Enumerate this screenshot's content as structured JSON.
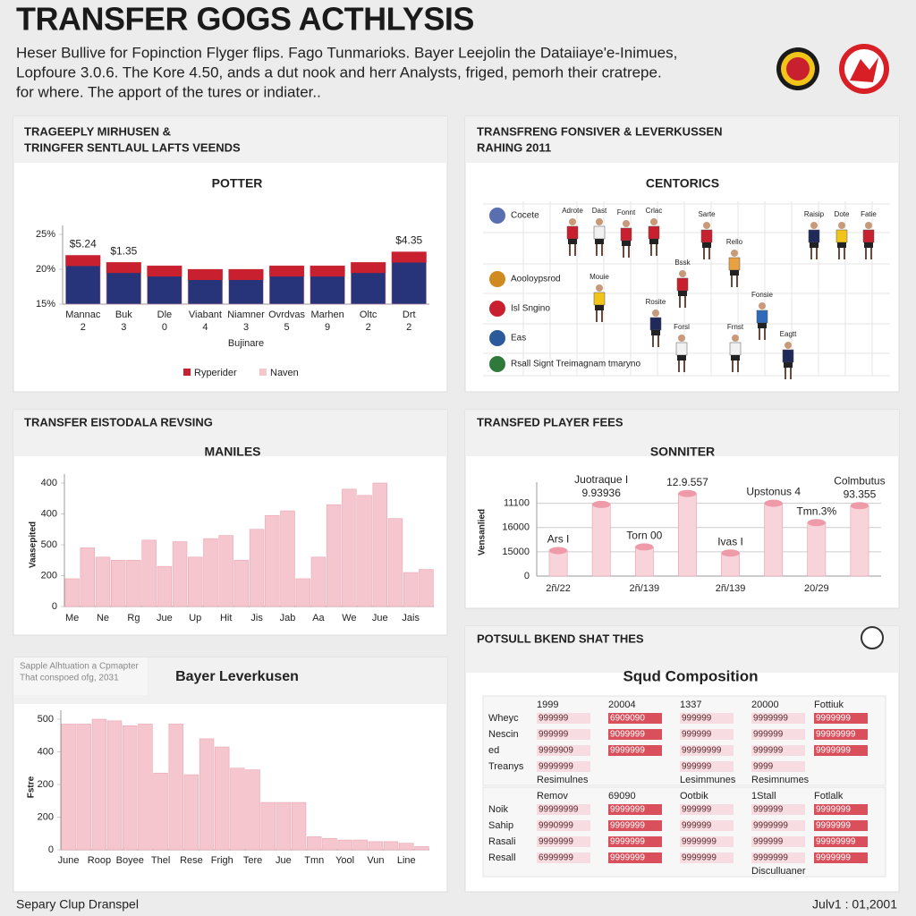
{
  "header": {
    "title": "TRANSFER GOGS ACTHLYSIS",
    "subtitle": [
      "Heser Bullive for Fopinction Flyger flips. Fago Tunmarioks. Bayer Leejolin the Dataiiaye'e-Inimues,",
      "Lopfoure 3.0.6. The Kore 4.50, ands a dut nook and herr Analysts, friged, pemorh their cratrepe.",
      "for where. The apport of the tures or indiater.."
    ]
  },
  "chart_data": [
    {
      "type": "bar",
      "heading": [
        "TRAGEEPLY MIRHUSEN &",
        "TRINGFER SENTLAUL LAFTS VEENDS"
      ],
      "title": "POTTER",
      "categories": [
        "Mannac",
        "Buk",
        "Dle",
        "Viabant",
        "Niamner",
        "Ovrdvas",
        "Marhen",
        "Oltc",
        "Drt"
      ],
      "category_counts": [
        2,
        3,
        0,
        4,
        3,
        5,
        9,
        2,
        2
      ],
      "values": [
        22,
        21,
        20.5,
        20,
        20,
        20.5,
        20.5,
        21,
        22.5
      ],
      "annotations": [
        [
          "$5.24"
        ],
        [
          "$1.35"
        ],
        null,
        null,
        null,
        null,
        null,
        null,
        [
          "$4.35"
        ]
      ],
      "color": "#27347a",
      "cap_color": "#c8202e",
      "xlabel": "Bujinare",
      "ylim": [
        15,
        25
      ],
      "yticks": [
        {
          "value": 15,
          "label": "15%"
        },
        {
          "value": 20,
          "label": "20%"
        },
        {
          "value": 25,
          "label": "25%"
        }
      ],
      "grid": false,
      "legend": [
        {
          "name": "Ryperider",
          "color": "#c8202e"
        },
        {
          "name": "Naven",
          "color": "#f6c6cf"
        }
      ],
      "legend_position": "bottom"
    },
    {
      "type": "bar",
      "heading": [
        "TRANSFER EISTODALA REVSING"
      ],
      "title": "MANILES",
      "ylabel": "Vaasepited",
      "categories": [
        "Me",
        null,
        "Ne",
        null,
        "Rg",
        null,
        "Jue",
        null,
        "Up",
        null,
        "Hit",
        null,
        "Jis",
        null,
        "Jab",
        null,
        "Aa",
        null,
        "We",
        null,
        "Jue",
        null,
        "Jais",
        null
      ],
      "values": [
        90,
        190,
        160,
        150,
        150,
        215,
        130,
        210,
        160,
        220,
        230,
        150,
        250,
        295,
        310,
        90,
        160,
        330,
        380,
        360,
        400,
        285,
        110,
        120
      ],
      "color": "#f6c6cf",
      "ylim": [
        0,
        400
      ],
      "yticks": [
        0,
        {
          "value": 100,
          "label": "200"
        },
        {
          "value": 200,
          "label": "500"
        },
        {
          "value": 300,
          "label": "400"
        },
        400
      ],
      "grid": false
    },
    {
      "type": "bar",
      "heading": [
        "TRANSFED PLAYER FEES"
      ],
      "title": "SONNITER",
      "ylabel": "Vensanlied",
      "categories": [
        "2ñ/22",
        null,
        "2ñ/139",
        null,
        "2ñ/139",
        null,
        "20/29",
        null
      ],
      "values": [
        1.05,
        2.95,
        1.2,
        3.4,
        0.95,
        3.0,
        2.2,
        2.9
      ],
      "annotations": [
        [
          "Ars I"
        ],
        [
          "Juotraque I",
          "9.93936"
        ],
        [
          "Torn 00"
        ],
        [
          "12.9.557"
        ],
        [
          "Ivas I"
        ],
        [
          "Upstonus 4"
        ],
        [
          "Tmn.3%"
        ],
        [
          "Colmbutus",
          "93.355"
        ]
      ],
      "color": "#f9d3da",
      "cap_color": "#ee9aa8",
      "ylim": [
        0,
        3.5
      ],
      "yticks": [
        0,
        {
          "value": 1,
          "label": "15000"
        },
        {
          "value": 2,
          "label": "16000"
        },
        {
          "value": 3,
          "label": "11100"
        }
      ],
      "grid": true
    },
    {
      "type": "bar",
      "heading": [
        "Sapple Alhtuation a Cpmapter",
        "That conspoed ofg, 2031"
      ],
      "title": "Bayer Leverkusen",
      "ylabel": "Fstre",
      "categories": [
        "June",
        null,
        "Roop",
        null,
        "Boyee",
        null,
        "Thel",
        null,
        "Rese",
        null,
        "Frigh",
        null,
        "Tere",
        null,
        "Jue",
        null,
        "Tmn",
        null,
        "Yool",
        null,
        "Vun",
        null,
        "Line",
        null
      ],
      "values": [
        385,
        385,
        400,
        395,
        380,
        385,
        235,
        385,
        230,
        340,
        315,
        250,
        245,
        145,
        145,
        145,
        40,
        35,
        30,
        30,
        25,
        25,
        20,
        10
      ],
      "color": "#f6c6cf",
      "ylim": [
        0,
        400
      ],
      "yticks": [
        0,
        {
          "value": 100,
          "label": "200"
        },
        200,
        {
          "value": 300,
          "label": "400"
        },
        {
          "value": 400,
          "label": "500"
        }
      ],
      "grid": false
    }
  ],
  "players_panel": {
    "heading": [
      "TRANSFRENG FONSIVER & LEVERKUSSEN",
      "RAHING 2011"
    ],
    "title": "CENTORICS",
    "rows": [
      "Cocete",
      "Aooloypsrod",
      "Isl Sngino",
      "Eas",
      "Rsall Signt Treimagnam tmaryno"
    ],
    "players": [
      {
        "name": "Adrote",
        "kit": "#c8202e"
      },
      {
        "name": "Dast",
        "kit": "#f2f2f2"
      },
      {
        "name": "Fonnt",
        "kit": "#c8202e"
      },
      {
        "name": "Crlac",
        "kit": "#c8202e"
      },
      {
        "name": "Sarte",
        "kit": "#c8202e"
      },
      {
        "name": "Raisip",
        "kit": "#1f2a5a"
      },
      {
        "name": "Dote",
        "kit": "#f2c318"
      },
      {
        "name": "Fatie",
        "kit": "#c8202e"
      },
      {
        "name": "Rello",
        "kit": "#e8a040"
      },
      {
        "name": "Bssk",
        "kit": "#c8202e"
      },
      {
        "name": "Mouie",
        "kit": "#f2c318"
      },
      {
        "name": "Rosite",
        "kit": "#1f2a5a"
      },
      {
        "name": "Fonsie",
        "kit": "#2f6ab8"
      },
      {
        "name": "Forsl",
        "kit": "#f2f2f2"
      },
      {
        "name": "Frnst",
        "kit": "#f2f2f2"
      },
      {
        "name": "Eagtt",
        "kit": "#1f2a5a"
      }
    ]
  },
  "squad_panel": {
    "heading": [
      "POTSULL BKEND SHAT THES"
    ],
    "title": "Squd Composition",
    "sections": [
      {
        "header": [
          "1999",
          "20004",
          "1337",
          "20000",
          "Fottiuk"
        ],
        "rows": [
          {
            "label": "Wheyc",
            "cells": [
              "999999",
              "6909090",
              "999999",
              "9999999",
              "9999999"
            ]
          },
          {
            "label": "Nescin",
            "cells": [
              "999999",
              "9099999",
              "999999",
              "999999",
              "99999999"
            ]
          },
          {
            "label": "ed",
            "cells": [
              "9999909",
              "9999999",
              "99999999",
              "999999",
              "9999999"
            ]
          },
          {
            "label": "Treanys",
            "cells": [
              "9999999",
              null,
              "999999",
              "9999",
              null
            ]
          }
        ],
        "footer": [
          "Resimulnes",
          null,
          "Lesimmunes",
          "Resimnumes",
          null
        ]
      },
      {
        "header": [
          "Remov",
          "69090",
          "Ootbik",
          "1Stall",
          "Fotlalk"
        ],
        "rows": [
          {
            "label": "Noik",
            "cells": [
              "99999999",
              "9999999",
              "999999",
              "999999",
              "9999999"
            ]
          },
          {
            "label": "Sahip",
            "cells": [
              "9990999",
              "9999999",
              "999999",
              "9999999",
              "9999999"
            ]
          },
          {
            "label": "Rasali",
            "cells": [
              "9999999",
              "9999999",
              "9999999",
              "999999",
              "99999999"
            ]
          },
          {
            "label": "Resall",
            "cells": [
              "6999999",
              "9999999",
              "9999999",
              "9999999",
              "9999999"
            ]
          }
        ],
        "footer": [
          null,
          null,
          null,
          "Disculluaner",
          null
        ]
      }
    ]
  },
  "footer": {
    "left": "Separy Clup Dranspel",
    "right": "Julv1 : 01,2001"
  }
}
